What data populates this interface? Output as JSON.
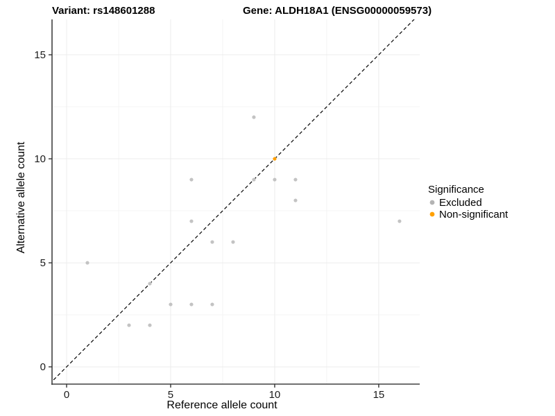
{
  "header": {
    "title_left": "Variant: rs148601288",
    "title_right": "Gene: ALDH18A1 (ENSG00000059573)"
  },
  "chart_data": {
    "type": "scatter",
    "xlabel": "Reference allele count",
    "ylabel": "Alternative allele count",
    "xlim": [
      -0.7,
      16.97
    ],
    "ylim": [
      -0.83,
      16.7
    ],
    "xticks": [
      0,
      5,
      10,
      15
    ],
    "yticks": [
      0,
      5,
      10,
      15
    ],
    "minor_xticks": [
      2.5,
      7.5,
      12.5
    ],
    "minor_yticks": [
      2.5,
      7.5,
      12.5
    ],
    "grid": true,
    "identity_line": {
      "style": "dashed",
      "equation": "y = x",
      "color": "#000000"
    },
    "series": [
      {
        "name": "Excluded",
        "color": "#c3c3c3",
        "points": [
          [
            1,
            5
          ],
          [
            3,
            2
          ],
          [
            4,
            2
          ],
          [
            4,
            4
          ],
          [
            5,
            3
          ],
          [
            6,
            3
          ],
          [
            6,
            7
          ],
          [
            6,
            9
          ],
          [
            7,
            3
          ],
          [
            7,
            6
          ],
          [
            8,
            6
          ],
          [
            9,
            9
          ],
          [
            9,
            12
          ],
          [
            10,
            9
          ],
          [
            11,
            8
          ],
          [
            11,
            9
          ],
          [
            16,
            7
          ]
        ]
      },
      {
        "name": "Non-significant",
        "color": "#ffa000",
        "points": [
          [
            10,
            10
          ]
        ]
      }
    ],
    "legend": {
      "title": "Significance",
      "position": "right",
      "entries": [
        {
          "label": "Excluded",
          "color": "#b3b3b3"
        },
        {
          "label": "Non-significant",
          "color": "#ffa000"
        }
      ]
    },
    "colors": {
      "grid_major": "#ececec",
      "grid_minor": "#f4f4f4",
      "axis_line": "#404040",
      "tick": "#333333"
    }
  }
}
